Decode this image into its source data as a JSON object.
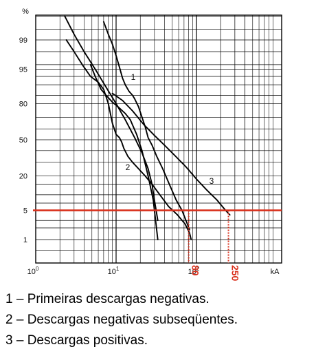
{
  "chart_data": {
    "type": "line",
    "y_axis_unit": "%",
    "x_axis_unit": "kA",
    "x_scale": "log",
    "y_scale": "probability",
    "xlim": [
      1,
      400
    ],
    "ylim": [
      0.3,
      99.9
    ],
    "y_ticks": [
      {
        "value": 99,
        "label": "99"
      },
      {
        "value": 95,
        "label": "95"
      },
      {
        "value": 80,
        "label": "80"
      },
      {
        "value": 50,
        "label": "50"
      },
      {
        "value": 20,
        "label": "20"
      },
      {
        "value": 5,
        "label": "5"
      },
      {
        "value": 1,
        "label": "1"
      }
    ],
    "x_ticks": [
      {
        "value": 1,
        "base": "10",
        "exp": "0"
      },
      {
        "value": 10,
        "base": "10",
        "exp": "1"
      },
      {
        "value": 100,
        "base": "10",
        "exp": "2"
      }
    ],
    "grid": true,
    "series": [
      {
        "name": "1",
        "x": [
          2.4,
          3.0,
          3.8,
          4.8,
          6.0,
          7.0,
          8.0,
          9.0,
          10.0,
          11.0,
          11.7,
          12.5,
          14.0,
          16.0,
          19.0,
          23.0,
          28.0,
          35.0,
          45.0,
          58.0,
          72.0,
          82.0,
          86.0
        ],
        "y": [
          99.0,
          98.0,
          96.0,
          93.0,
          91.0,
          88.0,
          80.0,
          65.0,
          55.0,
          52.0,
          48.0,
          42.0,
          35.0,
          30.0,
          25.0,
          20.0,
          15.0,
          10.0,
          6.0,
          4.0,
          2.5,
          1.5,
          1.0
        ]
      },
      {
        "name": "1",
        "x": [
          7.0,
          8.0,
          9.0,
          10.0,
          11.0,
          12.0,
          13.0,
          14.5,
          16.0,
          17.0,
          19.0,
          21.0,
          23.0,
          25.0,
          28.0,
          32.0,
          38.0,
          46.0,
          56.0,
          66.0,
          74.0,
          82.0
        ],
        "y": [
          99.7,
          99.3,
          98.7,
          97.5,
          95.5,
          92.5,
          90.0,
          87.0,
          85.0,
          83.0,
          78.0,
          70.0,
          62.0,
          52.0,
          45.0,
          35.0,
          25.0,
          15.0,
          8.0,
          5.0,
          3.0,
          1.8
        ]
      },
      {
        "name": "2",
        "x": [
          2.3,
          3.0,
          4.0,
          5.5,
          7.5,
          10.0,
          13.0,
          17.0,
          21.0,
          25.0,
          28.0,
          30.0,
          33.0
        ],
        "y": [
          99.8,
          99.3,
          98.0,
          95.0,
          89.0,
          80.0,
          68.0,
          52.0,
          38.0,
          25.0,
          15.0,
          8.0,
          3.0
        ]
      },
      {
        "name": "2",
        "x": [
          4.8,
          5.5,
          6.5,
          7.5,
          9.0,
          11.0,
          13.0,
          15.0,
          18.0,
          21.0,
          25.0,
          29.0,
          33.0
        ],
        "y": [
          96.0,
          93.0,
          88.0,
          85.0,
          81.0,
          77.0,
          73.0,
          68.0,
          55.0,
          40.0,
          20.0,
          8.0,
          1.0
        ]
      },
      {
        "name": "3",
        "x": [
          9.0,
          12.0,
          16.0,
          22.0,
          30.0,
          40.0,
          55.0,
          75.0,
          100.0,
          135.0,
          180.0,
          230.0,
          260.0
        ],
        "y": [
          86.0,
          82.0,
          75.0,
          64.0,
          54.0,
          45.0,
          35.0,
          26.0,
          18.0,
          12.0,
          8.0,
          5.0,
          4.0
        ]
      }
    ],
    "annotations": {
      "threshold": {
        "y": 5,
        "color": "#d9301c"
      },
      "markers": [
        {
          "x": 80,
          "label": "80"
        },
        {
          "x": 250,
          "label": "250"
        }
      ],
      "marker_color": "#d9301c"
    }
  },
  "legend": [
    "1 – Primeiras descargas negativas.",
    "2 – Descargas negativas subseqüentes.",
    "3 – Descargas positivas."
  ]
}
